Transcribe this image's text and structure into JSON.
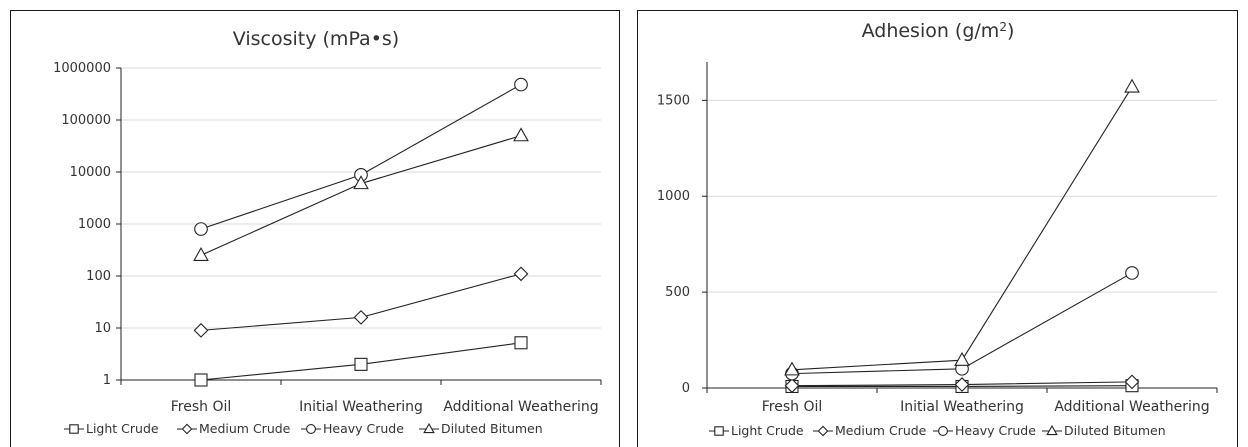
{
  "chart_data": [
    {
      "type": "line",
      "title": "Viscosity (mPa•s)",
      "xlabel": "",
      "ylabel": "",
      "yscale": "log",
      "ylim": [
        1,
        1000000
      ],
      "y_ticks": [
        "1",
        "10",
        "100",
        "1000",
        "10000",
        "100000",
        "1000000"
      ],
      "grid": true,
      "legend_position": "bottom",
      "categories": [
        "Fresh Oil",
        "Initial Weathering",
        "Additional Weathering"
      ],
      "series": [
        {
          "name": "Light Crude",
          "marker": "square",
          "values": [
            1,
            2,
            5.2
          ]
        },
        {
          "name": "Medium Crude",
          "marker": "diamond",
          "values": [
            9,
            16,
            110
          ]
        },
        {
          "name": "Heavy Crude",
          "marker": "circle",
          "values": [
            800,
            8800,
            480000
          ]
        },
        {
          "name": "Diluted Bitumen",
          "marker": "triangle",
          "values": [
            250,
            6000,
            50000
          ]
        }
      ]
    },
    {
      "type": "line",
      "title": "Adhesion (g/m",
      "title_sup": "2",
      "title_end": ")",
      "xlabel": "",
      "ylabel": "",
      "ylim": [
        0,
        1700
      ],
      "y_ticks": [
        "0",
        "500",
        "1000",
        "1500"
      ],
      "grid": true,
      "legend_position": "bottom",
      "categories": [
        "Fresh Oil",
        "Initial Weathering",
        "Additional Weathering"
      ],
      "series": [
        {
          "name": "Light Crude",
          "marker": "square",
          "values": [
            8,
            8,
            12
          ]
        },
        {
          "name": "Medium Crude",
          "marker": "diamond",
          "values": [
            12,
            18,
            32
          ]
        },
        {
          "name": "Heavy Crude",
          "marker": "circle",
          "values": [
            75,
            100,
            600
          ]
        },
        {
          "name": "Diluted Bitumen",
          "marker": "triangle",
          "values": [
            95,
            145,
            1570
          ]
        }
      ]
    }
  ]
}
